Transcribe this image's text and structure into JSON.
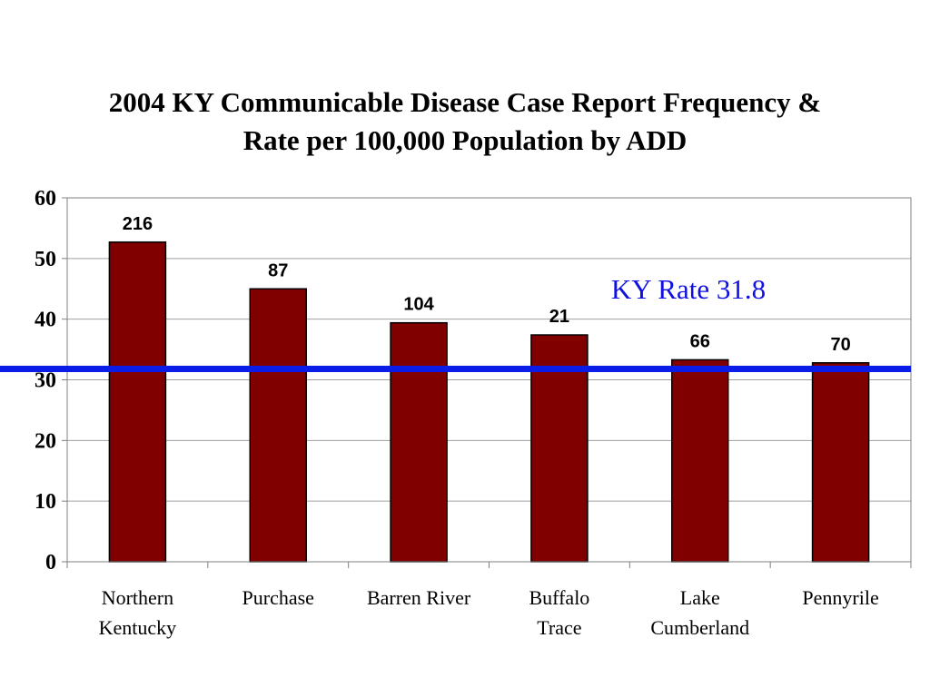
{
  "chart_data": {
    "type": "bar",
    "title_lines": [
      "2004 KY Communicable Disease Case Report Frequency &",
      "Rate per 100,000 Population by ADD"
    ],
    "categories": [
      [
        "Northern",
        "Kentucky"
      ],
      [
        "Purchase"
      ],
      [
        "Barren River"
      ],
      [
        "Buffalo",
        "Trace"
      ],
      [
        "Lake",
        "Cumberland"
      ],
      [
        "Pennyrile"
      ]
    ],
    "values": [
      52.7,
      45.0,
      39.4,
      37.4,
      33.3,
      32.8
    ],
    "data_labels": [
      "216",
      "87",
      "104",
      "21",
      "66",
      "70"
    ],
    "ylim": [
      0,
      60
    ],
    "yticks": [
      "0",
      "10",
      "20",
      "30",
      "40",
      "50",
      "60"
    ],
    "grid": true,
    "reference_line": {
      "value": 31.8,
      "label": "KY Rate 31.8",
      "color": "#0a1de8"
    },
    "bar_color": "#800000",
    "xlabel": "",
    "ylabel": ""
  }
}
